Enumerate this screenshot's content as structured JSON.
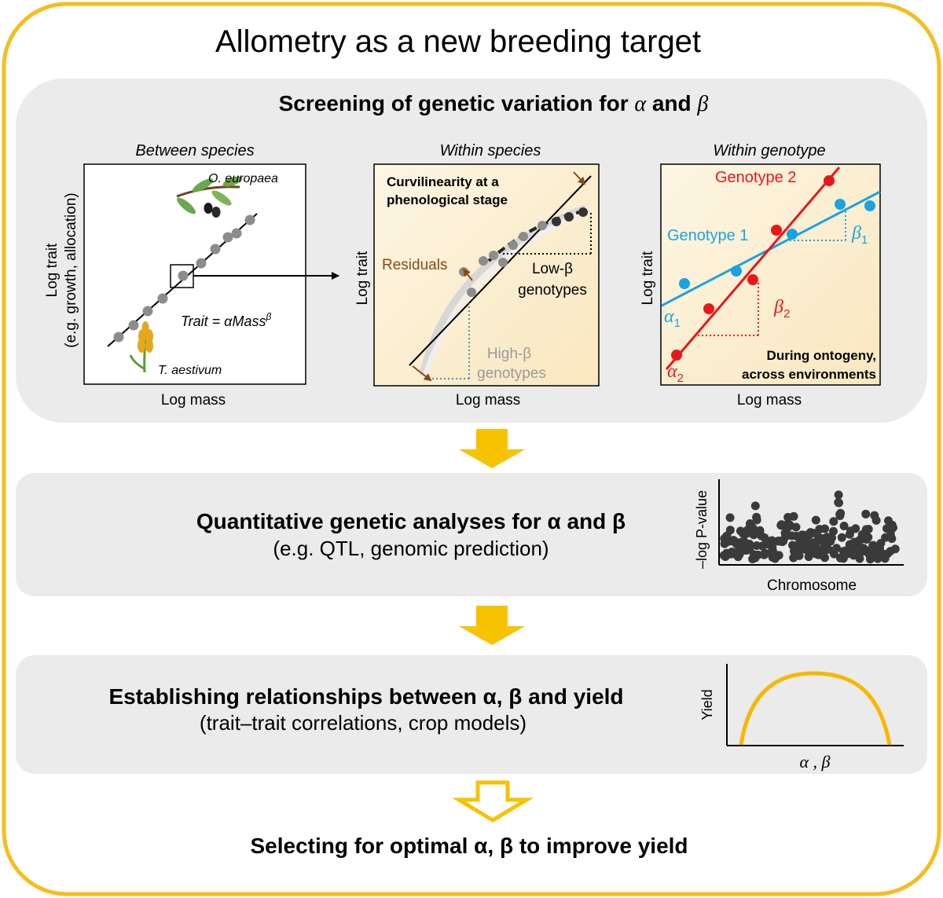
{
  "title": "Allometry as a new breeding target",
  "screening": {
    "heading_prefix": "Screening of genetic variation for ",
    "alpha": "α",
    "and": " and ",
    "beta": "β",
    "between": {
      "label": "Between species",
      "ylabel_1": "Log trait",
      "ylabel_2": "(e.g. growth, allocation)",
      "xlabel": "Log mass",
      "species_top": "O. europaea",
      "species_bottom": "T. aestivum",
      "formula": "Trait = αMass",
      "formula_exp": "β"
    },
    "within_species": {
      "label": "Within species",
      "ylabel": "Log trait",
      "xlabel": "Log mass",
      "curvi_1": "Curvilinearity at a",
      "curvi_2": "phenological stage",
      "residuals": "Residuals",
      "low_beta_1": "Low-β",
      "low_beta_2": "genotypes",
      "high_beta_1": "High-β",
      "high_beta_2": "genotypes"
    },
    "within_genotype": {
      "label": "Within genotype",
      "ylabel": "Log trait",
      "xlabel": "Log mass",
      "genotype2": "Genotype  2",
      "genotype1": "Genotype 1",
      "beta1": "β",
      "beta1_sub": "1",
      "beta2": "β",
      "beta2_sub": "2",
      "alpha1": "α",
      "alpha1_sub": "1",
      "alpha2": "α",
      "alpha2_sub": "2",
      "note_1": "During ontogeny,",
      "note_2": "across environments"
    }
  },
  "quantitative": {
    "heading": "Quantitative genetic analyses for α and β",
    "sub": "(e.g. QTL, genomic prediction)",
    "ylabel": "–log P-value",
    "xlabel": "Chromosome"
  },
  "relationships": {
    "heading": "Establishing relationships between α, β and yield",
    "sub": "(trait–trait correlations, crop models)",
    "ylabel": "Yield",
    "xlabel": "α , β"
  },
  "conclusion": "Selecting for optimal α, β to improve yield",
  "colors": {
    "frame": "#f5bd1f",
    "arrow": "#f7c200",
    "panel": "#ebebeb",
    "genotype1": "#1aa3e0",
    "genotype2": "#e8171c",
    "brown": "#8b4a12",
    "grey_dots": "#8c8c8c",
    "curve": "#f5b800"
  }
}
